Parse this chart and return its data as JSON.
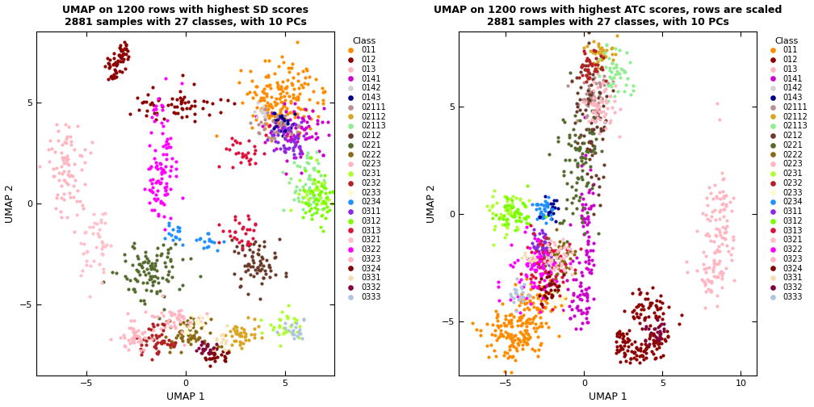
{
  "title1": "UMAP on 1200 rows with highest SD scores\n2881 samples with 27 classes, with 10 PCs",
  "title2": "UMAP on 1200 rows with highest ATC scores, rows are scaled\n2881 samples with 27 classes, with 10 PCs",
  "xlabel": "UMAP 1",
  "ylabel": "UMAP 2",
  "legend_title": "Class",
  "classes": [
    "011",
    "012",
    "013",
    "0141",
    "0142",
    "0143",
    "02111",
    "02112",
    "02113",
    "0212",
    "0221",
    "0222",
    "0223",
    "0231",
    "0232",
    "0233",
    "0234",
    "0311",
    "0312",
    "0313",
    "0321",
    "0322",
    "0323",
    "0324",
    "0331",
    "0332",
    "0333"
  ],
  "color_map": {
    "011": "#FF8C00",
    "012": "#8B0000",
    "013": "#FFB6C1",
    "0141": "#CC00CC",
    "0142": "#D3D3D3",
    "0143": "#00008B",
    "02111": "#BC8F8F",
    "02112": "#DAA520",
    "02113": "#90EE90",
    "0212": "#6B3A2A",
    "0221": "#556B2F",
    "0222": "#8B6914",
    "0223": "#FFB6C1",
    "0231": "#ADFF2F",
    "0232": "#B22222",
    "0233": "#FFFACD",
    "0234": "#1E90FF",
    "0311": "#8A2BE2",
    "0312": "#7CFC00",
    "0313": "#DC143C",
    "0321": "#FFC0CB",
    "0322": "#FF00FF",
    "0323": "#FFB6C1",
    "0324": "#800000",
    "0331": "#F5DEB3",
    "0332": "#800040",
    "0333": "#B0C4DE"
  },
  "plot1_xlim": [
    -7.5,
    7.5
  ],
  "plot1_ylim": [
    -8.5,
    8.5
  ],
  "plot1_xticks": [
    -5,
    0,
    5
  ],
  "plot1_yticks": [
    -5,
    0,
    5
  ],
  "plot2_xlim": [
    -8,
    11
  ],
  "plot2_ylim": [
    -7.5,
    8.5
  ],
  "plot2_xticks": [
    -5,
    0,
    5,
    10
  ],
  "plot2_yticks": [
    -5,
    0,
    5
  ],
  "figsize": [
    10.08,
    5.04
  ],
  "dpi": 100,
  "point_size": 9,
  "seed": 42
}
